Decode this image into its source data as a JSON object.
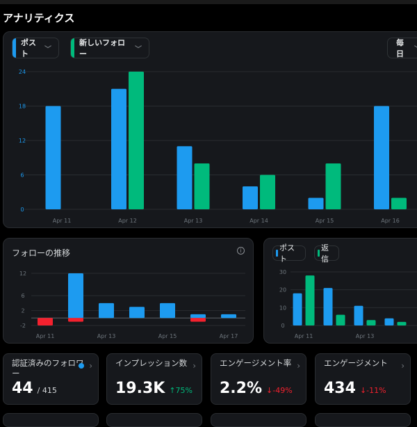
{
  "header": {
    "title": "アナリティクス"
  },
  "main_chart": {
    "filters": [
      {
        "label": "ポスト",
        "color": "#1d9bf0"
      },
      {
        "label": "新しいフォロー",
        "color": "#00ba7c"
      }
    ],
    "period": "毎日",
    "chart_data": {
      "type": "bar",
      "categories": [
        "Apr 11",
        "Apr 12",
        "Apr 13",
        "Apr 14",
        "Apr 15",
        "Apr 16"
      ],
      "yticks": [
        "0",
        "6",
        "12",
        "18",
        "24"
      ],
      "ylim": [
        0,
        24
      ],
      "series": [
        {
          "name": "ポスト",
          "color": "#1d9bf0",
          "values": [
            18,
            21,
            11,
            4,
            2,
            18
          ]
        },
        {
          "name": "新しいフォロー",
          "color": "#00ba7c",
          "values": [
            0,
            24,
            8,
            6,
            8,
            2
          ]
        }
      ]
    }
  },
  "follow_chart": {
    "title": "フォローの推移",
    "chart_data": {
      "type": "bar",
      "categories": [
        "Apr 11",
        "Apr 12",
        "Apr 13",
        "Apr 14",
        "Apr 15",
        "Apr 16",
        "Apr 17"
      ],
      "xticks": [
        "Apr 11",
        "Apr 13",
        "Apr 15",
        "Apr 17"
      ],
      "yticks": [
        "-2",
        "2",
        "6",
        "12"
      ],
      "ylim": [
        -2,
        12
      ],
      "series": [
        {
          "color": "#1d9bf0",
          "values": [
            0,
            12,
            4,
            3,
            4,
            1,
            1
          ]
        },
        {
          "color": "#f4212e",
          "values": [
            -2,
            -1,
            0,
            0,
            0,
            -1,
            0
          ]
        }
      ]
    }
  },
  "posts_chart": {
    "legend": [
      {
        "label": "ポスト",
        "color": "#1d9bf0"
      },
      {
        "label": "返信",
        "color": "#00ba7c"
      }
    ],
    "chart_data": {
      "type": "bar",
      "categories": [
        "Apr 11",
        "Apr 12",
        "Apr 13",
        "Apr 14"
      ],
      "xticks": [
        "Apr 11",
        "Apr 13"
      ],
      "yticks": [
        "0",
        "10",
        "20",
        "30"
      ],
      "ylim": [
        0,
        30
      ],
      "series": [
        {
          "name": "ポスト",
          "color": "#1d9bf0",
          "values": [
            18,
            21,
            11,
            4
          ]
        },
        {
          "name": "返信",
          "color": "#00ba7c",
          "values": [
            28,
            6,
            3,
            2
          ]
        }
      ]
    }
  },
  "stats": [
    {
      "label": "認証済みのフォロワー",
      "value": "44",
      "sub": "/ 415",
      "verified": true
    },
    {
      "label": "インプレッション数",
      "value": "19.3K",
      "sub": "↑75%",
      "trend": "up"
    },
    {
      "label": "エンゲージメント率",
      "value": "2.2%",
      "sub": "↓-49%",
      "trend": "down"
    },
    {
      "label": "エンゲージメント",
      "value": "434",
      "sub": "↓-11%",
      "trend": "down"
    }
  ]
}
